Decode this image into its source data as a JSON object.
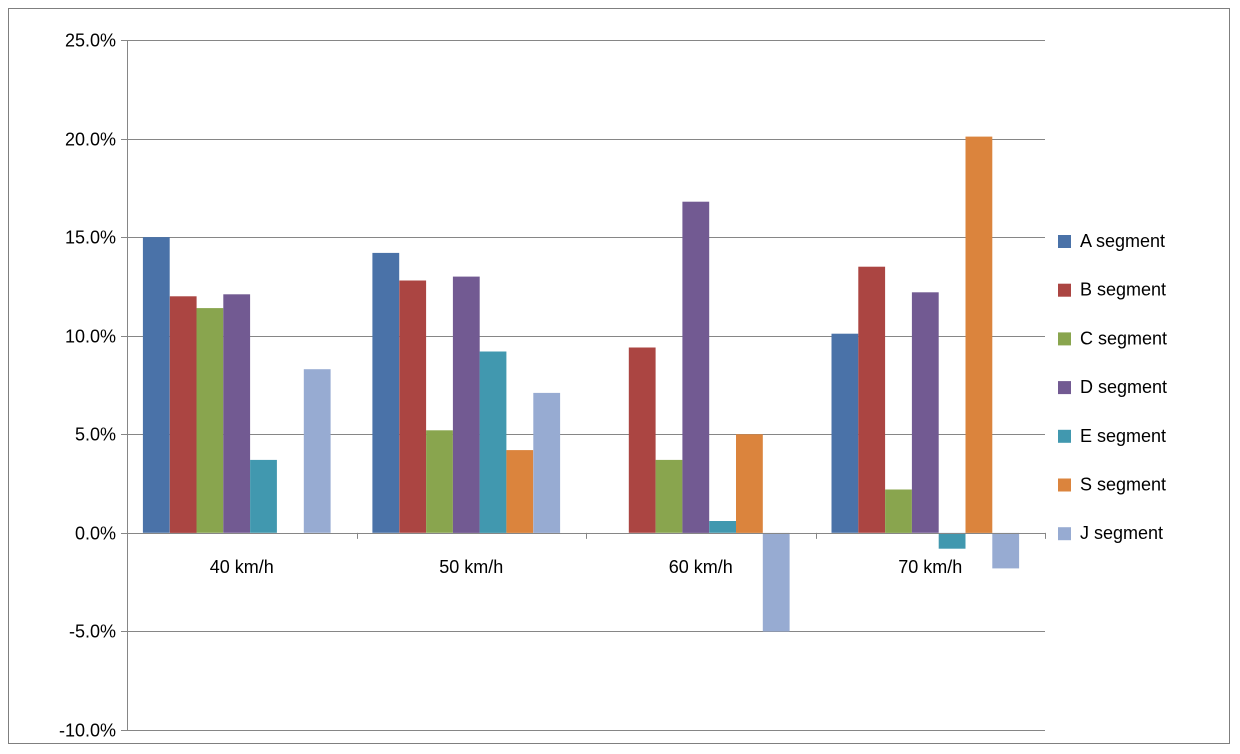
{
  "chart_data": {
    "type": "bar",
    "title": "",
    "xlabel": "",
    "ylabel": "",
    "categories": [
      "40 km/h",
      "50 km/h",
      "60 km/h",
      "70 km/h"
    ],
    "ylim": [
      -10,
      25
    ],
    "yticks": [
      25,
      20,
      15,
      10,
      5,
      0,
      -5,
      -10
    ],
    "ytick_labels": [
      "25.0%",
      "20.0%",
      "15.0%",
      "10.0%",
      "5.0%",
      "0.0%",
      "-5.0%",
      "-10.0%"
    ],
    "grid": true,
    "legend_position": "right",
    "series": [
      {
        "name": "A segment",
        "color": "#4a72a8",
        "values": [
          15.0,
          14.2,
          null,
          10.1
        ]
      },
      {
        "name": "B segment",
        "color": "#ab4542",
        "values": [
          12.0,
          12.8,
          9.4,
          13.5
        ]
      },
      {
        "name": "C segment",
        "color": "#89a54e",
        "values": [
          11.4,
          5.2,
          3.7,
          2.2
        ]
      },
      {
        "name": "D segment",
        "color": "#725a92",
        "values": [
          12.1,
          13.0,
          16.8,
          12.2
        ]
      },
      {
        "name": "E segment",
        "color": "#4198af",
        "values": [
          3.7,
          9.2,
          0.6,
          -0.8
        ]
      },
      {
        "name": "S segment",
        "color": "#db843d",
        "values": [
          null,
          4.2,
          5.0,
          20.1
        ]
      },
      {
        "name": "J segment",
        "color": "#97abd2",
        "values": [
          8.3,
          7.1,
          -5.0,
          -1.8
        ]
      }
    ]
  }
}
